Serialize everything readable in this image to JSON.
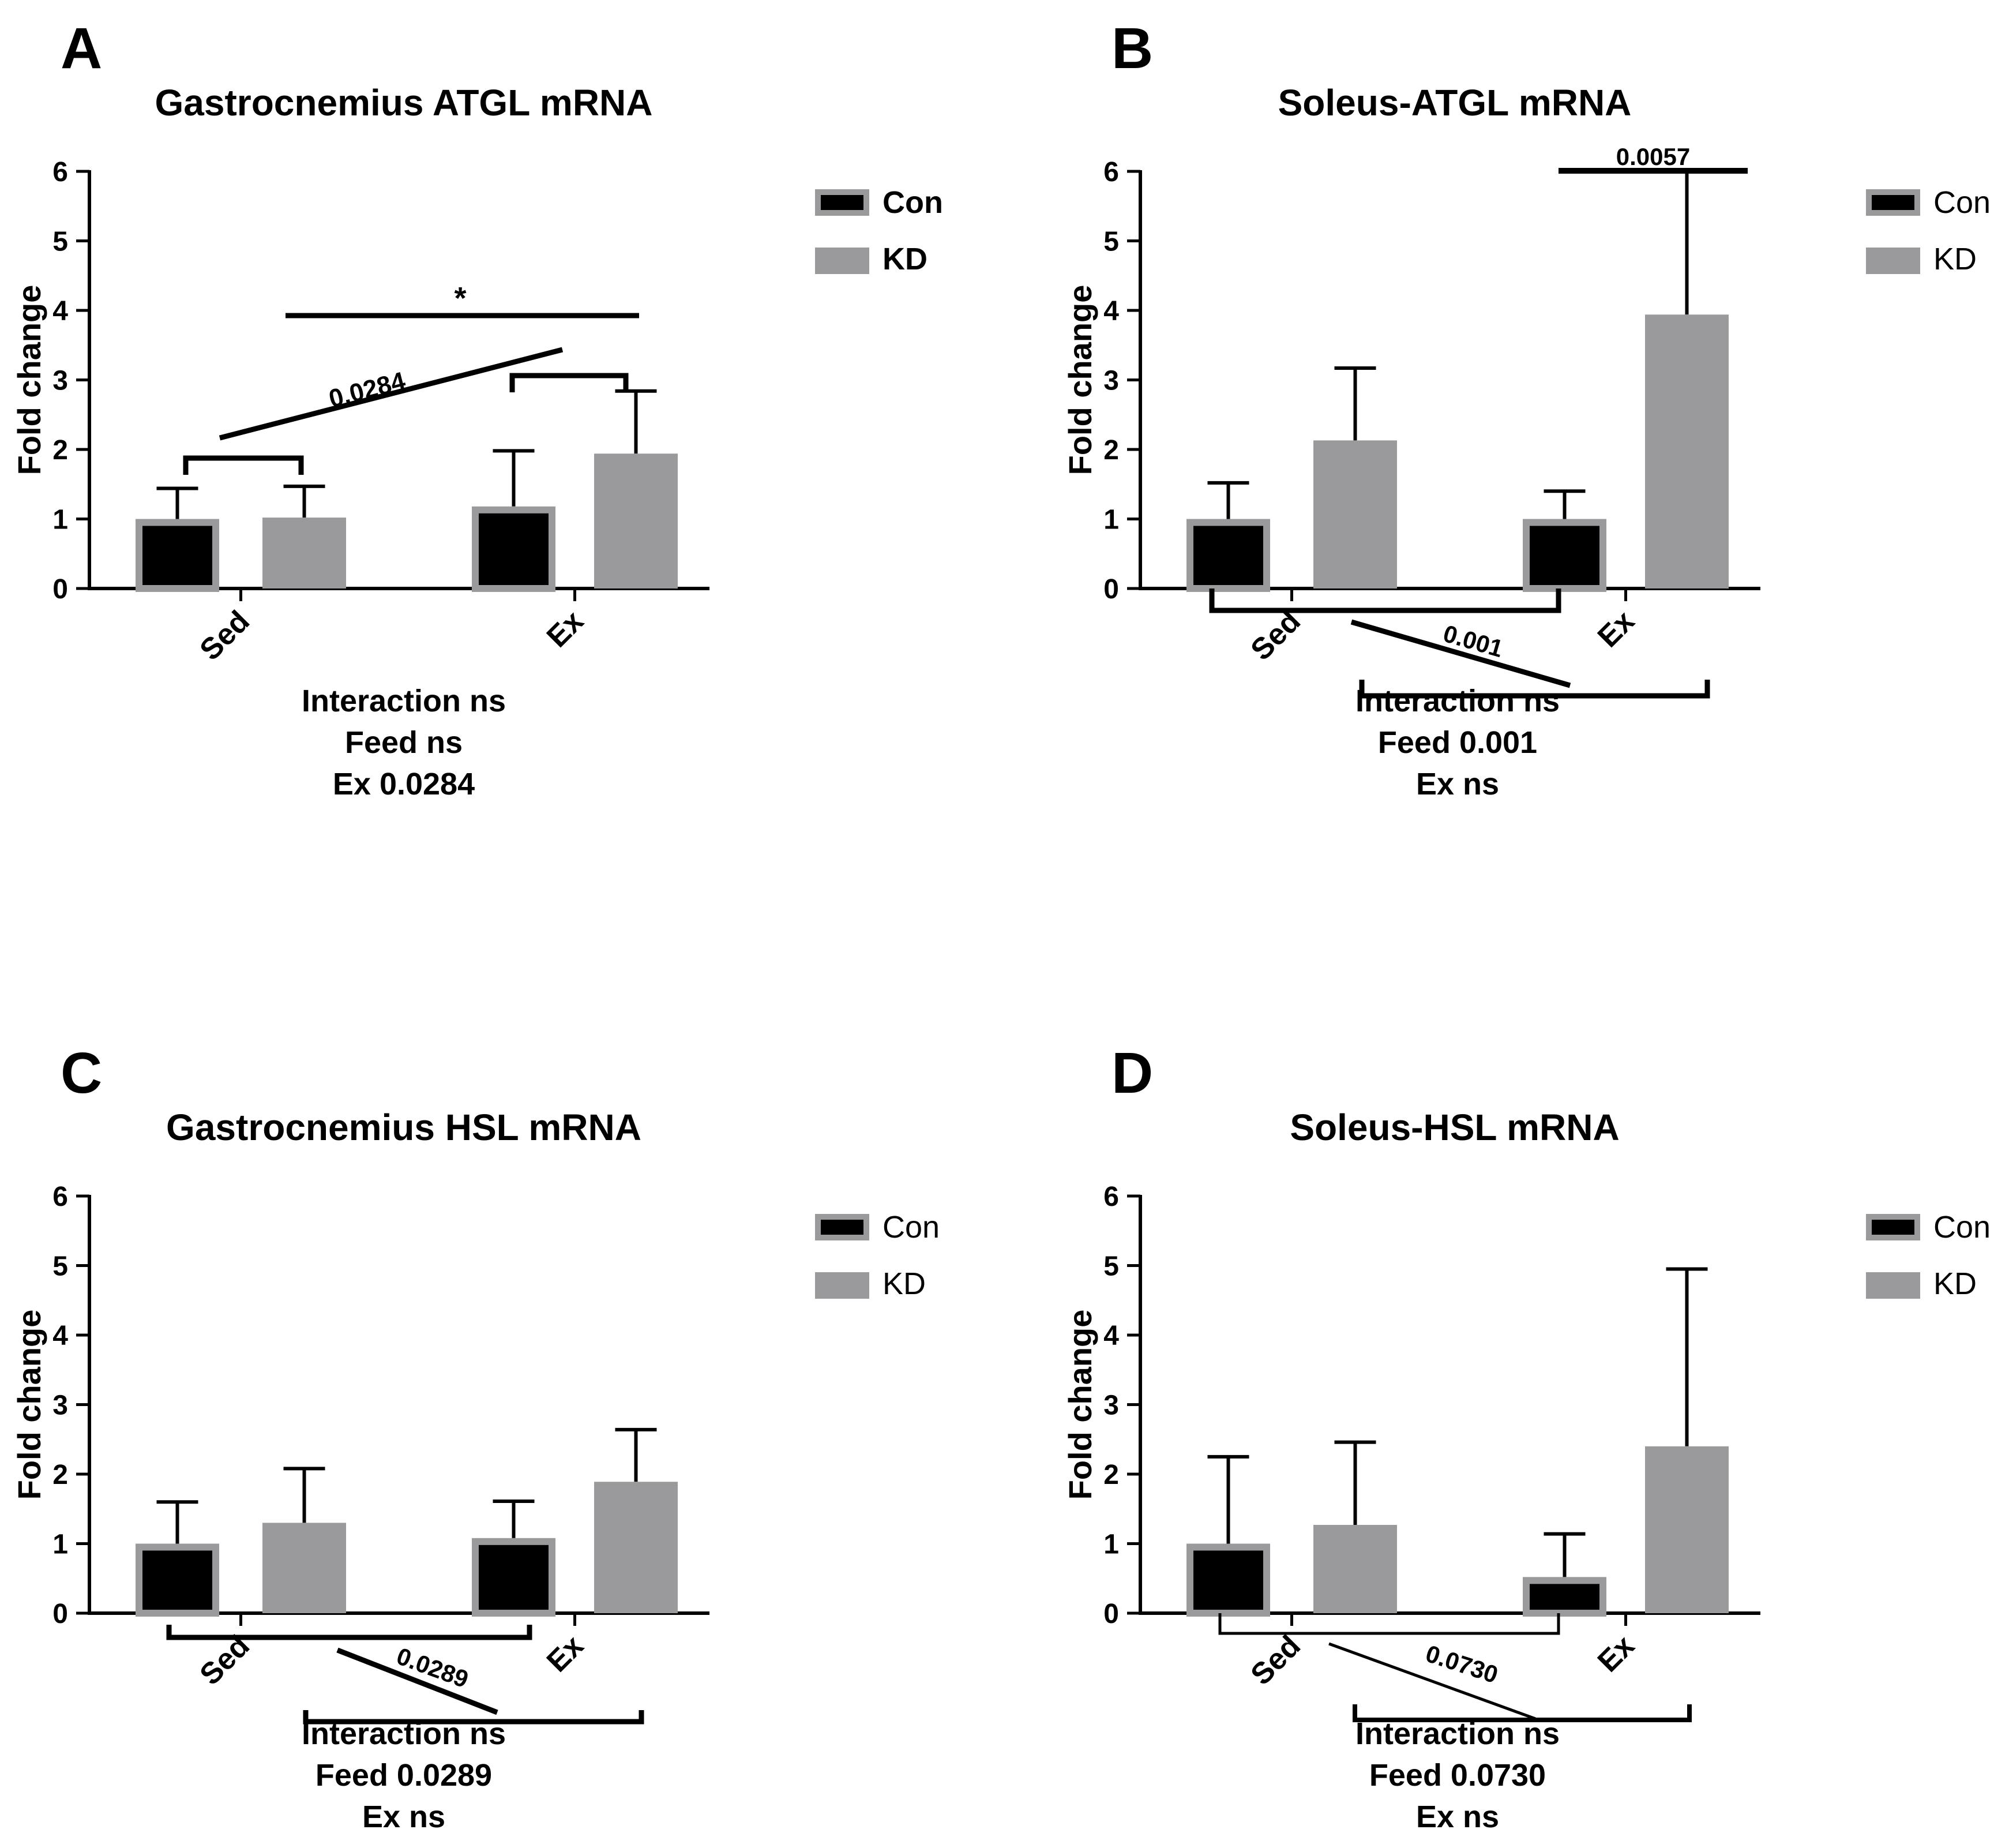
{
  "colors": {
    "con_fill": "#000000",
    "con_edge": "#9a9a9c",
    "kd_fill": "#9a9a9c",
    "axis": "#000000"
  },
  "chart_data": [
    {
      "type": "bar",
      "panel": "A",
      "title": "Gastrocnemius ATGL mRNA",
      "ylabel": "Fold change",
      "ylim": [
        0,
        6
      ],
      "yticks": [
        "0",
        "1",
        "2",
        "3",
        "4",
        "5",
        "6"
      ],
      "categories": [
        "Sed",
        "Ex"
      ],
      "series": [
        {
          "name": "Con",
          "values": [
            1.0,
            1.18
          ],
          "errors": [
            0.44,
            0.8
          ]
        },
        {
          "name": "KD",
          "values": [
            1.02,
            1.94
          ],
          "errors": [
            0.45,
            0.9
          ]
        }
      ],
      "legend": {
        "position": "right",
        "bold": true,
        "entries": [
          "Con",
          "KD"
        ]
      },
      "annotations": {
        "star": "*",
        "line_label": "0.0284"
      },
      "stats": [
        "Interaction ns",
        "Feed ns",
        "Ex 0.0284"
      ]
    },
    {
      "type": "bar",
      "panel": "B",
      "title": "Soleus-ATGL mRNA",
      "ylabel": "Fold change",
      "ylim": [
        0,
        6
      ],
      "yticks": [
        "0",
        "1",
        "2",
        "3",
        "4",
        "5",
        "6"
      ],
      "categories": [
        "Sed",
        "Ex"
      ],
      "series": [
        {
          "name": "Con",
          "values": [
            1.0,
            1.0
          ],
          "errors": [
            0.52,
            0.4
          ]
        },
        {
          "name": "KD",
          "values": [
            2.13,
            3.94
          ],
          "errors": [
            1.04,
            2.06
          ]
        }
      ],
      "legend": {
        "position": "right",
        "bold": false,
        "entries": [
          "Con",
          "KD"
        ]
      },
      "annotations": {
        "top_label": "0.0057",
        "line_label": "0.001"
      },
      "stats": [
        "Interaction ns",
        "Feed 0.001",
        "Ex ns"
      ]
    },
    {
      "type": "bar",
      "panel": "C",
      "title": "Gastrocnemius HSL mRNA",
      "ylabel": "Fold change",
      "ylim": [
        0,
        6
      ],
      "yticks": [
        "0",
        "1",
        "2",
        "3",
        "4",
        "5",
        "6"
      ],
      "categories": [
        "Sed",
        "Ex"
      ],
      "series": [
        {
          "name": "Con",
          "values": [
            1.0,
            1.08
          ],
          "errors": [
            0.6,
            0.53
          ]
        },
        {
          "name": "KD",
          "values": [
            1.3,
            1.89
          ],
          "errors": [
            0.78,
            0.75
          ]
        }
      ],
      "legend": {
        "position": "right",
        "bold": false,
        "entries": [
          "Con",
          "KD"
        ]
      },
      "annotations": {
        "line_label": "0.0289"
      },
      "stats": [
        "Interaction ns",
        "Feed 0.0289",
        "Ex ns"
      ]
    },
    {
      "type": "bar",
      "panel": "D",
      "title": "Soleus-HSL mRNA",
      "ylabel": "Fold change",
      "ylim": [
        0,
        6
      ],
      "yticks": [
        "0",
        "1",
        "2",
        "3",
        "4",
        "5",
        "6"
      ],
      "categories": [
        "Sed",
        "Ex"
      ],
      "series": [
        {
          "name": "Con",
          "values": [
            1.0,
            0.52
          ],
          "errors": [
            1.25,
            0.62
          ]
        },
        {
          "name": "KD",
          "values": [
            1.27,
            2.4
          ],
          "errors": [
            1.19,
            2.55
          ]
        }
      ],
      "legend": {
        "position": "right",
        "bold": false,
        "entries": [
          "Con",
          "KD"
        ]
      },
      "annotations": {
        "line_label": "0.0730"
      },
      "stats": [
        "Interaction ns",
        "Feed 0.0730",
        "Ex ns"
      ]
    }
  ]
}
